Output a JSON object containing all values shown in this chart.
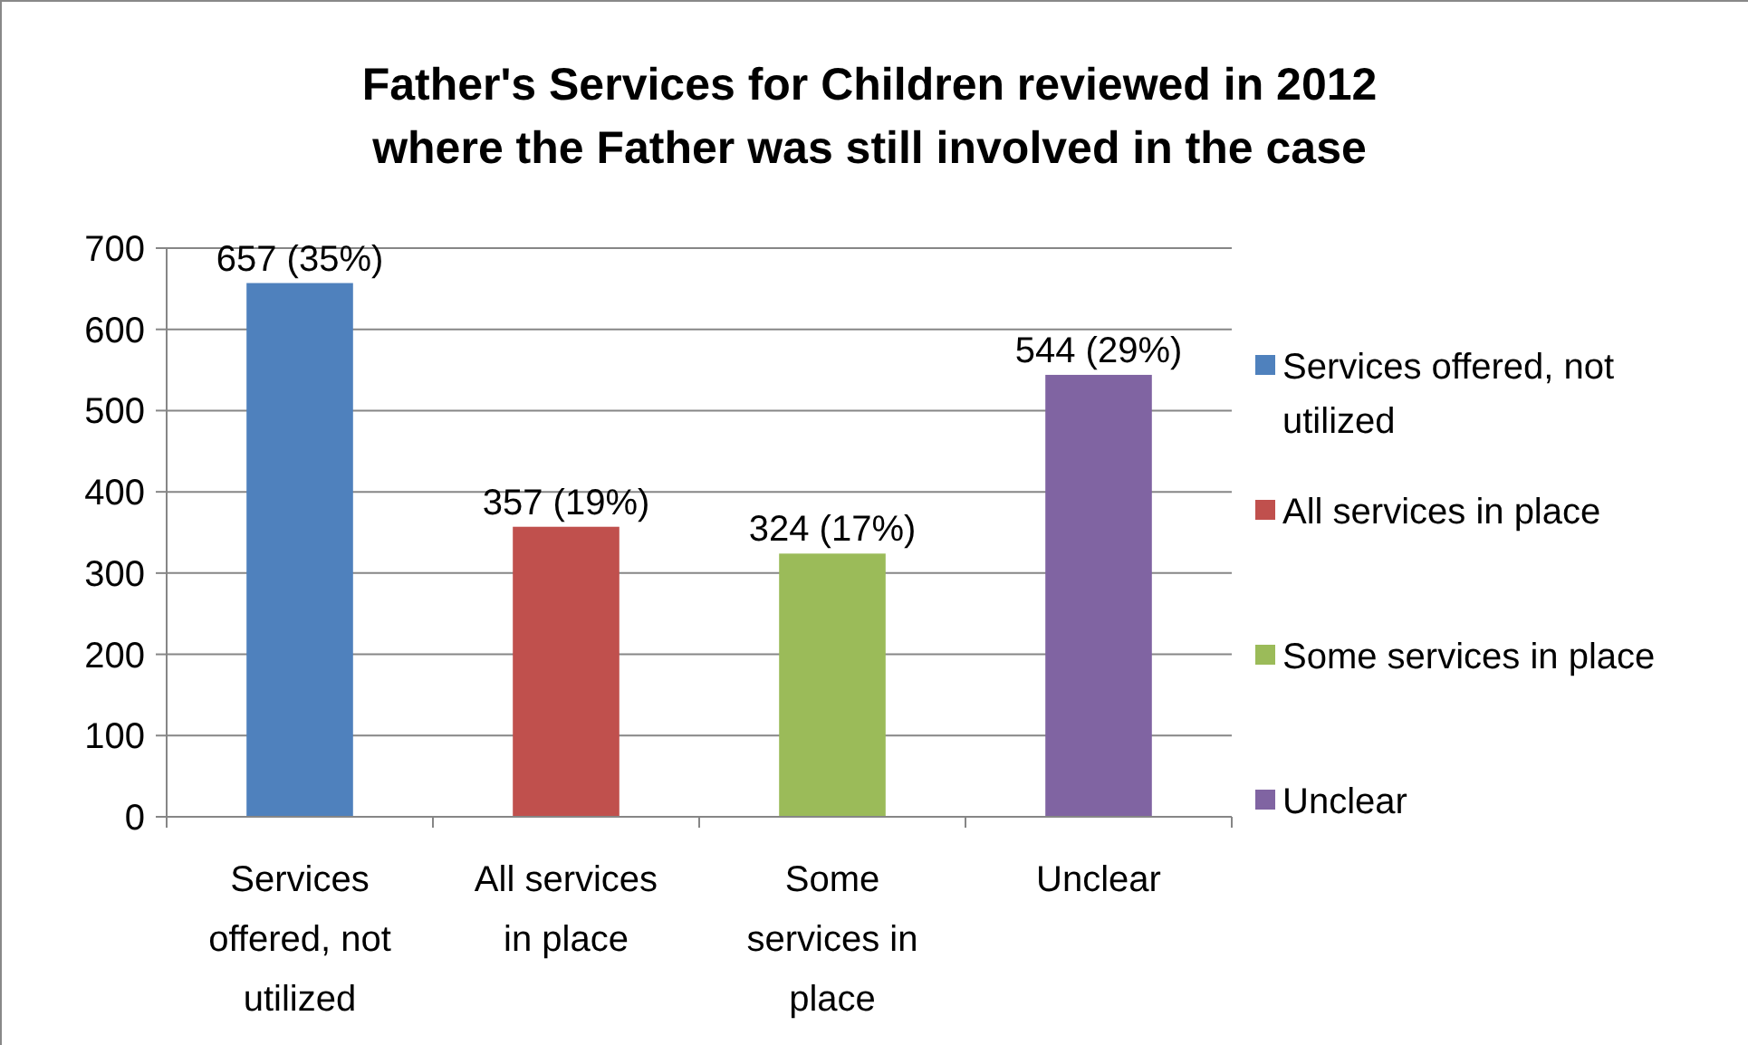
{
  "chart_data": {
    "type": "bar",
    "title": "Father's Services for Children reviewed in 2012 where the Father was still involved in the case",
    "categories": [
      "Services offered, not utilized",
      "All services in place",
      "Some services in place",
      "Unclear"
    ],
    "series": [
      {
        "name": "Services offered, not utilized",
        "color": "#4f81bd",
        "values": [
          657,
          null,
          null,
          null
        ],
        "value_labels": [
          "657 (35%)",
          null,
          null,
          null
        ]
      },
      {
        "name": "All services in place",
        "color": "#c0504d",
        "values": [
          null,
          357,
          null,
          null
        ],
        "value_labels": [
          null,
          "357 (19%)",
          null,
          null
        ]
      },
      {
        "name": "Some services in place",
        "color": "#9bbb59",
        "values": [
          null,
          null,
          324,
          null
        ],
        "value_labels": [
          null,
          null,
          "324 (17%)",
          null
        ]
      },
      {
        "name": "Unclear",
        "color": "#8064a2",
        "values": [
          null,
          null,
          null,
          544
        ],
        "value_labels": [
          null,
          null,
          null,
          "544 (29%)"
        ]
      }
    ],
    "ylim": [
      0,
      700
    ],
    "yticks": [
      0,
      100,
      200,
      300,
      400,
      500,
      600,
      700
    ],
    "grid": "y",
    "legend": "right"
  }
}
